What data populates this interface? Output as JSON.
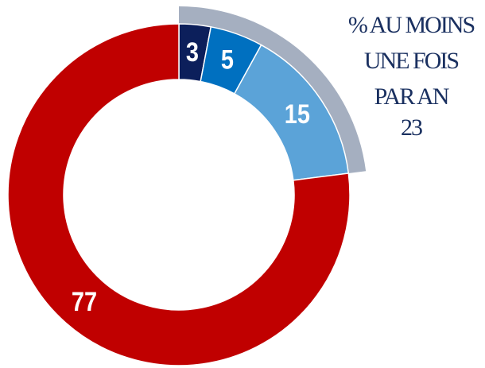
{
  "chart_data": {
    "type": "donut",
    "values": [
      3,
      5,
      15,
      77
    ],
    "colors": [
      "#0c1f5b",
      "#0070c0",
      "#5ba3d8",
      "#c00000"
    ],
    "annotation": {
      "lines": [
        "% AU MOINS",
        "UNE FOIS",
        "PAR AN"
      ],
      "value": 23,
      "color": "#a5afc0"
    }
  }
}
